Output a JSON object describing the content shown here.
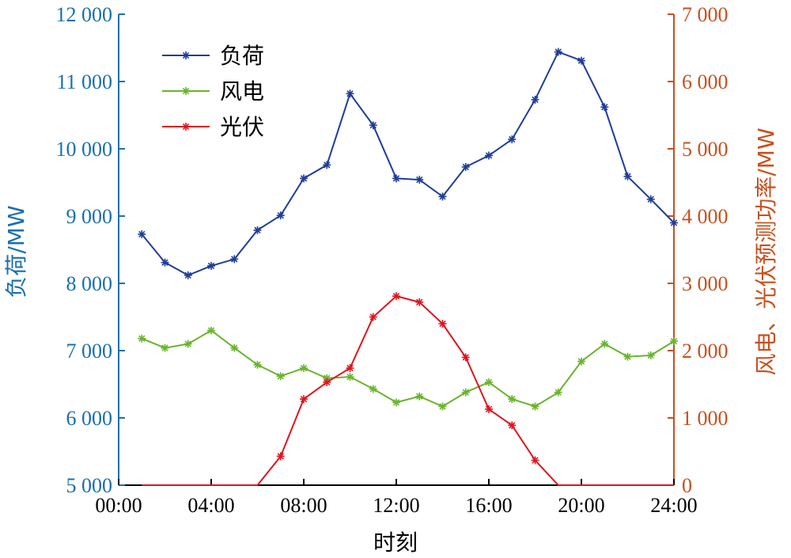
{
  "chart_data": {
    "type": "line",
    "x": [
      "01:00",
      "02:00",
      "03:00",
      "04:00",
      "05:00",
      "06:00",
      "07:00",
      "08:00",
      "09:00",
      "10:00",
      "11:00",
      "12:00",
      "13:00",
      "14:00",
      "15:00",
      "16:00",
      "17:00",
      "18:00",
      "19:00",
      "20:00",
      "21:00",
      "22:00",
      "23:00",
      "24:00"
    ],
    "x_ticks": [
      "00:00",
      "04:00",
      "08:00",
      "12:00",
      "16:00",
      "20:00",
      "24:00"
    ],
    "xlabel": "时刻",
    "ylabel_left": "负荷/MW",
    "ylabel_right": "风电、光伏预测功率/MW",
    "ylim_left": [
      5000,
      12000
    ],
    "ylim_right": [
      0,
      7000
    ],
    "yticks_left": [
      "5 000",
      "6 000",
      "7 000",
      "8 000",
      "9 000",
      "10 000",
      "11 000",
      "12 000"
    ],
    "yticks_right": [
      "0",
      "1 000",
      "2 000",
      "3 000",
      "4 000",
      "5 000",
      "6 000",
      "7 000"
    ],
    "legend_position": "top-left",
    "grid": false,
    "series": [
      {
        "name": "负荷",
        "axis": "left",
        "color": "#1f3c99",
        "values": [
          8730,
          8310,
          8120,
          8260,
          8360,
          8790,
          9010,
          9560,
          9760,
          10820,
          10350,
          9560,
          9540,
          9290,
          9730,
          9900,
          10140,
          10730,
          11440,
          11310,
          10620,
          9590,
          9250,
          8900
        ]
      },
      {
        "name": "风电",
        "axis": "right",
        "color": "#6ab42d",
        "values": [
          2180,
          2040,
          2100,
          2300,
          2040,
          1790,
          1620,
          1740,
          1590,
          1610,
          1430,
          1230,
          1320,
          1170,
          1380,
          1530,
          1280,
          1170,
          1380,
          1840,
          2100,
          1910,
          1930,
          2140
        ]
      },
      {
        "name": "光伏",
        "axis": "right",
        "color": "#e0141e",
        "values": [
          0,
          0,
          0,
          0,
          0,
          0,
          430,
          1280,
          1530,
          1740,
          2500,
          2810,
          2720,
          2400,
          1900,
          1130,
          890,
          370,
          0,
          0,
          0,
          0,
          0,
          0
        ]
      }
    ]
  },
  "colors": {
    "left_axis": "#1a6fb0",
    "right_axis": "#c8501e",
    "x_axis": "#000000"
  }
}
